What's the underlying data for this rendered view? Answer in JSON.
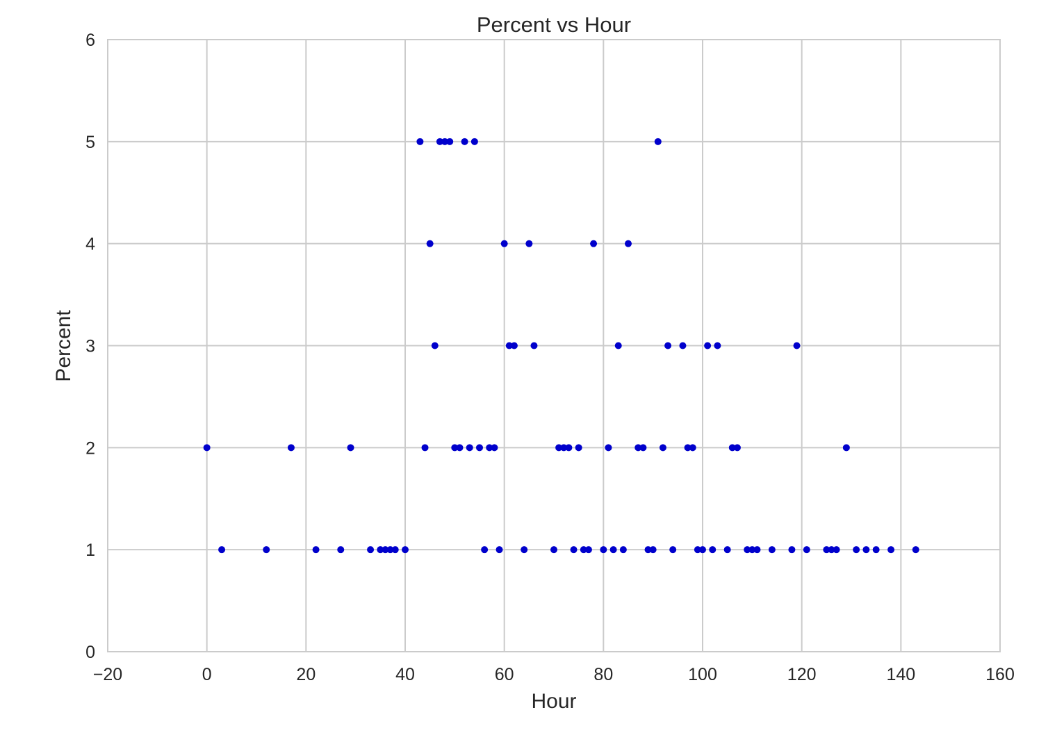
{
  "chart_data": {
    "type": "scatter",
    "title": "Percent vs Hour",
    "xlabel": "Hour",
    "ylabel": "Percent",
    "xlim": [
      -20,
      160
    ],
    "ylim": [
      0,
      6
    ],
    "xticks": [
      -20,
      0,
      20,
      40,
      60,
      80,
      100,
      120,
      140,
      160
    ],
    "yticks": [
      0,
      1,
      2,
      3,
      4,
      5,
      6
    ],
    "xtick_labels": [
      "−20",
      "0",
      "20",
      "40",
      "60",
      "80",
      "100",
      "120",
      "140",
      "160"
    ],
    "ytick_labels": [
      "0",
      "1",
      "2",
      "3",
      "4",
      "5",
      "6"
    ],
    "grid": true,
    "marker_color": "#0000cc",
    "series": [
      {
        "points": [
          {
            "x": 43,
            "y": 5
          },
          {
            "x": 47,
            "y": 5
          },
          {
            "x": 48,
            "y": 5
          },
          {
            "x": 49,
            "y": 5
          },
          {
            "x": 52,
            "y": 5
          },
          {
            "x": 54,
            "y": 5
          },
          {
            "x": 91,
            "y": 5
          },
          {
            "x": 45,
            "y": 4
          },
          {
            "x": 60,
            "y": 4
          },
          {
            "x": 65,
            "y": 4
          },
          {
            "x": 78,
            "y": 4
          },
          {
            "x": 85,
            "y": 4
          },
          {
            "x": 46,
            "y": 3
          },
          {
            "x": 61,
            "y": 3
          },
          {
            "x": 62,
            "y": 3
          },
          {
            "x": 66,
            "y": 3
          },
          {
            "x": 83,
            "y": 3
          },
          {
            "x": 93,
            "y": 3
          },
          {
            "x": 96,
            "y": 3
          },
          {
            "x": 101,
            "y": 3
          },
          {
            "x": 103,
            "y": 3
          },
          {
            "x": 119,
            "y": 3
          },
          {
            "x": 0,
            "y": 2
          },
          {
            "x": 17,
            "y": 2
          },
          {
            "x": 29,
            "y": 2
          },
          {
            "x": 44,
            "y": 2
          },
          {
            "x": 50,
            "y": 2
          },
          {
            "x": 51,
            "y": 2
          },
          {
            "x": 53,
            "y": 2
          },
          {
            "x": 55,
            "y": 2
          },
          {
            "x": 57,
            "y": 2
          },
          {
            "x": 58,
            "y": 2
          },
          {
            "x": 71,
            "y": 2
          },
          {
            "x": 72,
            "y": 2
          },
          {
            "x": 73,
            "y": 2
          },
          {
            "x": 75,
            "y": 2
          },
          {
            "x": 81,
            "y": 2
          },
          {
            "x": 87,
            "y": 2
          },
          {
            "x": 88,
            "y": 2
          },
          {
            "x": 92,
            "y": 2
          },
          {
            "x": 97,
            "y": 2
          },
          {
            "x": 98,
            "y": 2
          },
          {
            "x": 106,
            "y": 2
          },
          {
            "x": 107,
            "y": 2
          },
          {
            "x": 129,
            "y": 2
          },
          {
            "x": 3,
            "y": 1
          },
          {
            "x": 12,
            "y": 1
          },
          {
            "x": 22,
            "y": 1
          },
          {
            "x": 27,
            "y": 1
          },
          {
            "x": 33,
            "y": 1
          },
          {
            "x": 35,
            "y": 1
          },
          {
            "x": 36,
            "y": 1
          },
          {
            "x": 37,
            "y": 1
          },
          {
            "x": 38,
            "y": 1
          },
          {
            "x": 40,
            "y": 1
          },
          {
            "x": 56,
            "y": 1
          },
          {
            "x": 59,
            "y": 1
          },
          {
            "x": 64,
            "y": 1
          },
          {
            "x": 70,
            "y": 1
          },
          {
            "x": 74,
            "y": 1
          },
          {
            "x": 76,
            "y": 1
          },
          {
            "x": 77,
            "y": 1
          },
          {
            "x": 80,
            "y": 1
          },
          {
            "x": 82,
            "y": 1
          },
          {
            "x": 84,
            "y": 1
          },
          {
            "x": 89,
            "y": 1
          },
          {
            "x": 90,
            "y": 1
          },
          {
            "x": 94,
            "y": 1
          },
          {
            "x": 99,
            "y": 1
          },
          {
            "x": 100,
            "y": 1
          },
          {
            "x": 102,
            "y": 1
          },
          {
            "x": 105,
            "y": 1
          },
          {
            "x": 109,
            "y": 1
          },
          {
            "x": 110,
            "y": 1
          },
          {
            "x": 111,
            "y": 1
          },
          {
            "x": 114,
            "y": 1
          },
          {
            "x": 118,
            "y": 1
          },
          {
            "x": 121,
            "y": 1
          },
          {
            "x": 125,
            "y": 1
          },
          {
            "x": 126,
            "y": 1
          },
          {
            "x": 127,
            "y": 1
          },
          {
            "x": 131,
            "y": 1
          },
          {
            "x": 133,
            "y": 1
          },
          {
            "x": 135,
            "y": 1
          },
          {
            "x": 138,
            "y": 1
          },
          {
            "x": 143,
            "y": 1
          }
        ]
      }
    ]
  }
}
